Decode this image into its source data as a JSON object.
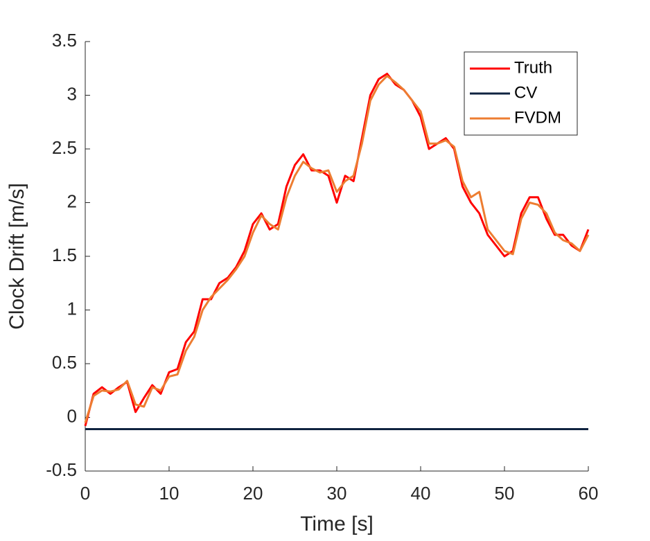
{
  "chart_data": {
    "type": "line",
    "xlabel": "Time [s]",
    "ylabel": "Clock Drift [m/s]",
    "x": [
      0,
      1,
      2,
      3,
      4,
      5,
      6,
      7,
      8,
      9,
      10,
      11,
      12,
      13,
      14,
      15,
      16,
      17,
      18,
      19,
      20,
      21,
      22,
      23,
      24,
      25,
      26,
      27,
      28,
      29,
      30,
      31,
      32,
      33,
      34,
      35,
      36,
      37,
      38,
      39,
      40,
      41,
      42,
      43,
      44,
      45,
      46,
      47,
      48,
      49,
      50,
      51,
      52,
      53,
      54,
      55,
      56,
      57,
      58,
      59,
      60
    ],
    "series": [
      {
        "name": "Truth",
        "color": "#ff0000",
        "values": [
          -0.08,
          0.22,
          0.28,
          0.22,
          0.28,
          0.33,
          0.05,
          0.18,
          0.3,
          0.22,
          0.42,
          0.45,
          0.7,
          0.8,
          1.1,
          1.1,
          1.25,
          1.3,
          1.4,
          1.55,
          1.8,
          1.9,
          1.75,
          1.8,
          2.15,
          2.35,
          2.45,
          2.3,
          2.3,
          2.25,
          2.0,
          2.25,
          2.2,
          2.6,
          3.0,
          3.15,
          3.2,
          3.1,
          3.05,
          2.95,
          2.8,
          2.5,
          2.55,
          2.6,
          2.5,
          2.15,
          2.0,
          1.9,
          1.7,
          1.6,
          1.5,
          1.55,
          1.9,
          2.05,
          2.05,
          1.85,
          1.7,
          1.7,
          1.6,
          1.55,
          1.75
        ]
      },
      {
        "name": "CV",
        "color": "#0f2340",
        "values": [
          -0.11,
          -0.11,
          -0.11,
          -0.11,
          -0.11,
          -0.11,
          -0.11,
          -0.11,
          -0.11,
          -0.11,
          -0.11,
          -0.11,
          -0.11,
          -0.11,
          -0.11,
          -0.11,
          -0.11,
          -0.11,
          -0.11,
          -0.11,
          -0.11,
          -0.11,
          -0.11,
          -0.11,
          -0.11,
          -0.11,
          -0.11,
          -0.11,
          -0.11,
          -0.11,
          -0.11,
          -0.11,
          -0.11,
          -0.11,
          -0.11,
          -0.11,
          -0.11,
          -0.11,
          -0.11,
          -0.11,
          -0.11,
          -0.11,
          -0.11,
          -0.11,
          -0.11,
          -0.11,
          -0.11,
          -0.11,
          -0.11,
          -0.11,
          -0.11,
          -0.11,
          -0.11,
          -0.11,
          -0.11,
          -0.11,
          -0.11,
          -0.11,
          -0.11,
          -0.11,
          -0.11
        ]
      },
      {
        "name": "FVDM",
        "color": "#ed7d31",
        "values": [
          -0.05,
          0.2,
          0.25,
          0.24,
          0.26,
          0.34,
          0.12,
          0.1,
          0.28,
          0.25,
          0.38,
          0.4,
          0.62,
          0.75,
          1.0,
          1.12,
          1.2,
          1.28,
          1.38,
          1.5,
          1.72,
          1.88,
          1.8,
          1.75,
          2.05,
          2.25,
          2.38,
          2.32,
          2.28,
          2.3,
          2.1,
          2.2,
          2.25,
          2.55,
          2.95,
          3.1,
          3.18,
          3.12,
          3.05,
          2.95,
          2.85,
          2.55,
          2.55,
          2.58,
          2.52,
          2.2,
          2.05,
          2.1,
          1.75,
          1.65,
          1.55,
          1.52,
          1.85,
          2.0,
          1.98,
          1.9,
          1.72,
          1.65,
          1.62,
          1.55,
          1.7
        ]
      }
    ],
    "xlim": [
      0,
      60
    ],
    "xticks": [
      0,
      10,
      20,
      30,
      40,
      50,
      60
    ],
    "ylim": [
      -0.5,
      3.5
    ],
    "yticks": [
      -0.5,
      0,
      0.5,
      1,
      1.5,
      2,
      2.5,
      3,
      3.5
    ],
    "legend": "upper right"
  }
}
